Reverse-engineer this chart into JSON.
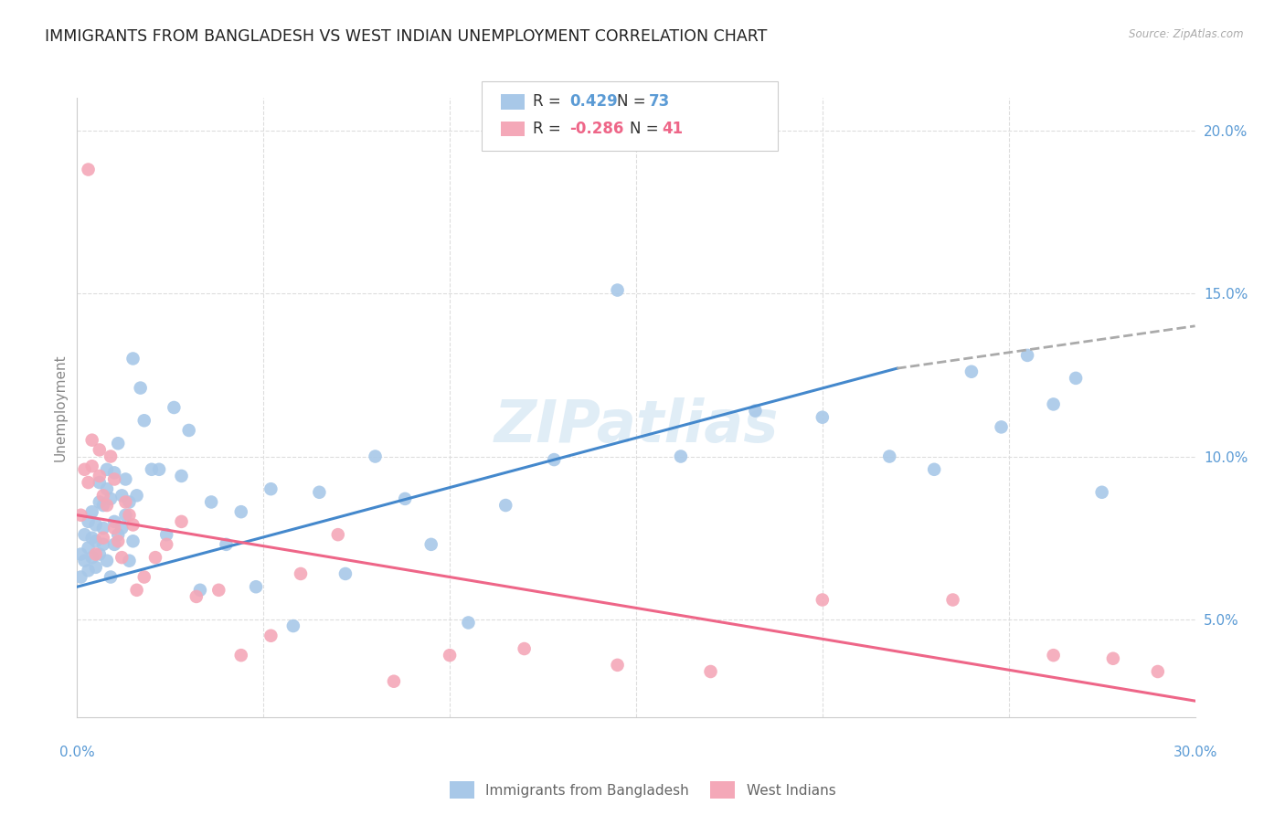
{
  "title": "IMMIGRANTS FROM BANGLADESH VS WEST INDIAN UNEMPLOYMENT CORRELATION CHART",
  "source": "Source: ZipAtlas.com",
  "ylabel": "Unemployment",
  "watermark": "ZIPatlias",
  "blue_R": "0.429",
  "blue_N": "73",
  "pink_R": "-0.286",
  "pink_N": "41",
  "blue_label": "Immigrants from Bangladesh",
  "pink_label": "West Indians",
  "blue_scatter_color": "#a8c8e8",
  "pink_scatter_color": "#f4a8b8",
  "blue_line_color": "#4488cc",
  "pink_line_color": "#ee6688",
  "gray_dash_color": "#aaaaaa",
  "background_color": "#ffffff",
  "grid_color": "#dddddd",
  "title_color": "#222222",
  "axis_label_color": "#5b9bd5",
  "blue_scatter_x": [
    0.001,
    0.001,
    0.002,
    0.002,
    0.003,
    0.003,
    0.003,
    0.004,
    0.004,
    0.004,
    0.005,
    0.005,
    0.005,
    0.006,
    0.006,
    0.006,
    0.007,
    0.007,
    0.007,
    0.008,
    0.008,
    0.008,
    0.009,
    0.009,
    0.01,
    0.01,
    0.01,
    0.011,
    0.011,
    0.012,
    0.012,
    0.013,
    0.013,
    0.014,
    0.014,
    0.015,
    0.015,
    0.016,
    0.017,
    0.018,
    0.02,
    0.022,
    0.024,
    0.026,
    0.028,
    0.03,
    0.033,
    0.036,
    0.04,
    0.044,
    0.048,
    0.052,
    0.058,
    0.065,
    0.072,
    0.08,
    0.088,
    0.095,
    0.105,
    0.115,
    0.128,
    0.145,
    0.162,
    0.182,
    0.2,
    0.218,
    0.23,
    0.24,
    0.248,
    0.255,
    0.262,
    0.268,
    0.275
  ],
  "blue_scatter_y": [
    0.063,
    0.07,
    0.068,
    0.076,
    0.072,
    0.08,
    0.065,
    0.069,
    0.075,
    0.083,
    0.066,
    0.074,
    0.079,
    0.07,
    0.086,
    0.092,
    0.073,
    0.078,
    0.085,
    0.068,
    0.09,
    0.096,
    0.063,
    0.087,
    0.073,
    0.08,
    0.095,
    0.076,
    0.104,
    0.088,
    0.078,
    0.082,
    0.093,
    0.086,
    0.068,
    0.074,
    0.13,
    0.088,
    0.121,
    0.111,
    0.096,
    0.096,
    0.076,
    0.115,
    0.094,
    0.108,
    0.059,
    0.086,
    0.073,
    0.083,
    0.06,
    0.09,
    0.048,
    0.089,
    0.064,
    0.1,
    0.087,
    0.073,
    0.049,
    0.085,
    0.099,
    0.151,
    0.1,
    0.114,
    0.112,
    0.1,
    0.096,
    0.126,
    0.109,
    0.131,
    0.116,
    0.124,
    0.089
  ],
  "pink_scatter_x": [
    0.001,
    0.002,
    0.003,
    0.003,
    0.004,
    0.004,
    0.005,
    0.006,
    0.006,
    0.007,
    0.007,
    0.008,
    0.009,
    0.01,
    0.01,
    0.011,
    0.012,
    0.013,
    0.014,
    0.015,
    0.016,
    0.018,
    0.021,
    0.024,
    0.028,
    0.032,
    0.038,
    0.044,
    0.052,
    0.06,
    0.07,
    0.085,
    0.1,
    0.12,
    0.145,
    0.17,
    0.2,
    0.235,
    0.262,
    0.278,
    0.29
  ],
  "pink_scatter_y": [
    0.082,
    0.096,
    0.092,
    0.188,
    0.097,
    0.105,
    0.07,
    0.094,
    0.102,
    0.088,
    0.075,
    0.085,
    0.1,
    0.093,
    0.078,
    0.074,
    0.069,
    0.086,
    0.082,
    0.079,
    0.059,
    0.063,
    0.069,
    0.073,
    0.08,
    0.057,
    0.059,
    0.039,
    0.045,
    0.064,
    0.076,
    0.031,
    0.039,
    0.041,
    0.036,
    0.034,
    0.056,
    0.056,
    0.039,
    0.038,
    0.034
  ],
  "blue_line_x0": 0.0,
  "blue_line_x_solid_end": 0.22,
  "blue_line_x1": 0.3,
  "blue_line_y0": 0.06,
  "blue_line_y_solid_end": 0.127,
  "blue_line_y1": 0.14,
  "pink_line_x0": 0.0,
  "pink_line_x1": 0.3,
  "pink_line_y0": 0.082,
  "pink_line_y1": 0.025,
  "xlim": [
    0.0,
    0.3
  ],
  "ylim": [
    0.02,
    0.21
  ],
  "yticks": [
    0.05,
    0.1,
    0.15,
    0.2
  ],
  "ytick_labels": [
    "5.0%",
    "10.0%",
    "15.0%",
    "20.0%"
  ],
  "xtick_positions": [
    0.0,
    0.05,
    0.1,
    0.15,
    0.2,
    0.25,
    0.3
  ],
  "figsize": [
    14.06,
    8.92
  ],
  "dpi": 100
}
